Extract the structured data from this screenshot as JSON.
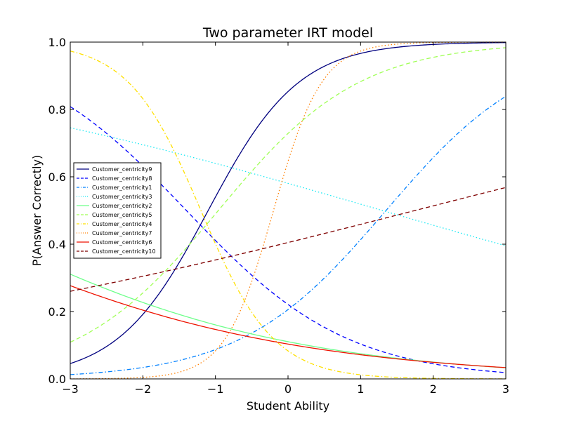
{
  "chart_data": {
    "type": "line",
    "title": "Two parameter IRT model",
    "xlabel": "Student Ability",
    "ylabel": "P(Answer Correctly)",
    "xlim": [
      -3,
      3
    ],
    "ylim": [
      0.0,
      1.0
    ],
    "xticks": [
      -3,
      -2,
      -1,
      0,
      1,
      2,
      3
    ],
    "xtick_labels": [
      "−3",
      "−2",
      "−1",
      "0",
      "1",
      "2",
      "3"
    ],
    "yticks": [
      0.0,
      0.2,
      0.4,
      0.6,
      0.8,
      1.0
    ],
    "ytick_labels": [
      "0.0",
      "0.2",
      "0.4",
      "0.6",
      "0.8",
      "1.0"
    ],
    "grid": false,
    "legend_position": "center-left",
    "model": "P(theta) = 1 / (1 + exp(-a * (theta - b)))",
    "series": [
      {
        "name": "Customer_centricity9",
        "a": 1.6,
        "b": -1.1,
        "color": "#00007f",
        "dash": "solid"
      },
      {
        "name": "Customer_centricity8",
        "a": -0.9,
        "b": -1.4,
        "color": "#0000ff",
        "dash": "dashed"
      },
      {
        "name": "Customer_centricity1",
        "a": 1.0,
        "b": 1.35,
        "color": "#0080ff",
        "dash": "dashdot"
      },
      {
        "name": "Customer_centricity3",
        "a": -0.25,
        "b": 1.3,
        "color": "#15e8f3",
        "dash": "dotted"
      },
      {
        "name": "Customer_centricity2",
        "a": -0.43,
        "b": -4.85,
        "color": "#6dff8a",
        "dash": "solid"
      },
      {
        "name": "Customer_centricity5",
        "a": 1.03,
        "b": -0.96,
        "color": "#a0ff56",
        "dash": "dashed"
      },
      {
        "name": "Customer_centricity4",
        "a": -2.0,
        "b": -1.2,
        "color": "#ffe000",
        "dash": "dashdot"
      },
      {
        "name": "Customer_centricity7",
        "a": 3.0,
        "b": -0.2,
        "color": "#ff7f00",
        "dash": "dotted"
      },
      {
        "name": "Customer_centricity6",
        "a": -0.4,
        "b": -5.4,
        "color": "#ee1200",
        "dash": "solid"
      },
      {
        "name": "Customer_centricity10",
        "a": 0.22,
        "b": 1.75,
        "color": "#7f0000",
        "dash": "dashed"
      }
    ]
  }
}
